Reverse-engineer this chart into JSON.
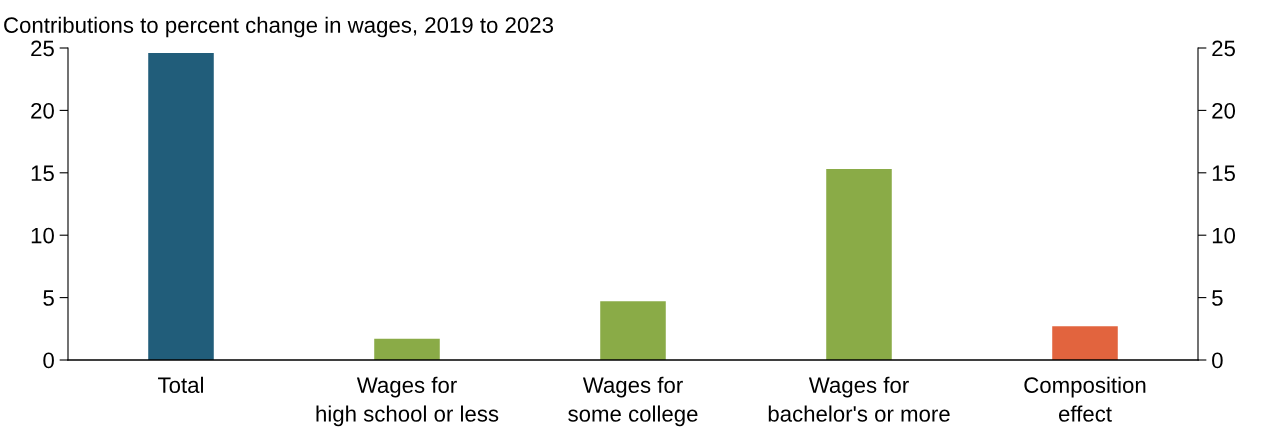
{
  "chart_data": {
    "type": "bar",
    "title": "Contributions to percent change in wages, 2019 to 2023",
    "categories": [
      "Total",
      "Wages for\nhigh school or less",
      "Wages for\nsome college",
      "Wages for\nbachelor's or more",
      "Composition\neffect"
    ],
    "values": [
      24.6,
      1.7,
      4.7,
      15.3,
      2.7
    ],
    "colors": [
      "#215d7a",
      "#8aab47",
      "#8aab47",
      "#8aab47",
      "#e2643e"
    ],
    "ylim": [
      0,
      25
    ],
    "yticks": [
      0,
      5,
      10,
      15,
      20,
      25
    ],
    "y2lim": [
      0,
      25
    ],
    "y2ticks": [
      0,
      5,
      10,
      15,
      20,
      25
    ],
    "grid": false,
    "legend": false
  }
}
